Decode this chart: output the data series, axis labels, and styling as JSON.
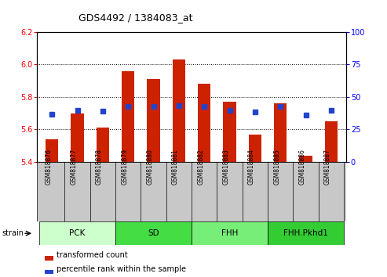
{
  "title": "GDS4492 / 1384083_at",
  "samples": [
    "GSM818876",
    "GSM818877",
    "GSM818878",
    "GSM818879",
    "GSM818880",
    "GSM818881",
    "GSM818882",
    "GSM818883",
    "GSM818884",
    "GSM818885",
    "GSM818886",
    "GSM818887"
  ],
  "transformed_count": [
    5.54,
    5.7,
    5.61,
    5.96,
    5.91,
    6.03,
    5.88,
    5.77,
    5.57,
    5.76,
    5.44,
    5.65
  ],
  "percentile_rank_scaled": [
    5.694,
    5.718,
    5.712,
    5.742,
    5.74,
    5.746,
    5.744,
    5.718,
    5.706,
    5.742,
    5.69,
    5.718
  ],
  "ylim_left": [
    5.4,
    6.2
  ],
  "ylim_right": [
    0,
    100
  ],
  "yticks_left": [
    5.4,
    5.6,
    5.8,
    6.0,
    6.2
  ],
  "yticks_right": [
    0,
    25,
    50,
    75,
    100
  ],
  "bar_color": "#cc2200",
  "dot_color": "#2244cc",
  "bar_bottom": 5.4,
  "groups": [
    {
      "label": "PCK",
      "start": 0,
      "end": 3,
      "color": "#ccffcc"
    },
    {
      "label": "SD",
      "start": 3,
      "end": 6,
      "color": "#44dd44"
    },
    {
      "label": "FHH",
      "start": 6,
      "end": 9,
      "color": "#77ee77"
    },
    {
      "label": "FHH.Pkhd1",
      "start": 9,
      "end": 12,
      "color": "#33cc33"
    }
  ],
  "legend_items": [
    {
      "label": "transformed count",
      "color": "#cc2200"
    },
    {
      "label": "percentile rank within the sample",
      "color": "#2244cc"
    }
  ],
  "tick_area_color": "#c8c8c8",
  "title_fontsize": 9,
  "axis_fontsize": 7,
  "tick_label_fontsize": 5.5,
  "group_label_fontsize": 7.5,
  "legend_fontsize": 7,
  "bar_width": 0.5
}
